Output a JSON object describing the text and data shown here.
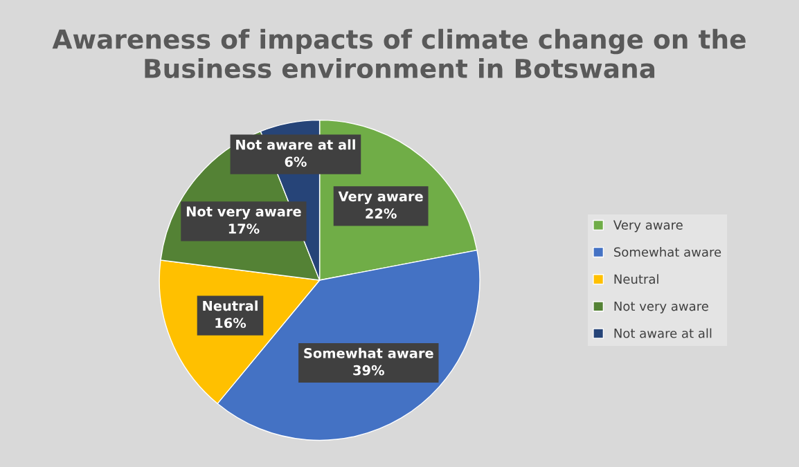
{
  "chart_data": {
    "type": "pie",
    "title": "Awareness of impacts of climate change on the Business environment in Botswana",
    "categories": [
      "Very aware",
      "Somewhat aware",
      "Neutral",
      "Not very aware",
      "Not aware at all"
    ],
    "values": [
      22,
      39,
      16,
      17,
      6
    ],
    "colors": [
      "#70ad47",
      "#4472c4",
      "#ffc000",
      "#548235",
      "#264478"
    ],
    "value_labels": [
      "22%",
      "39%",
      "16%",
      "17%",
      "6%"
    ],
    "legend": "right"
  }
}
